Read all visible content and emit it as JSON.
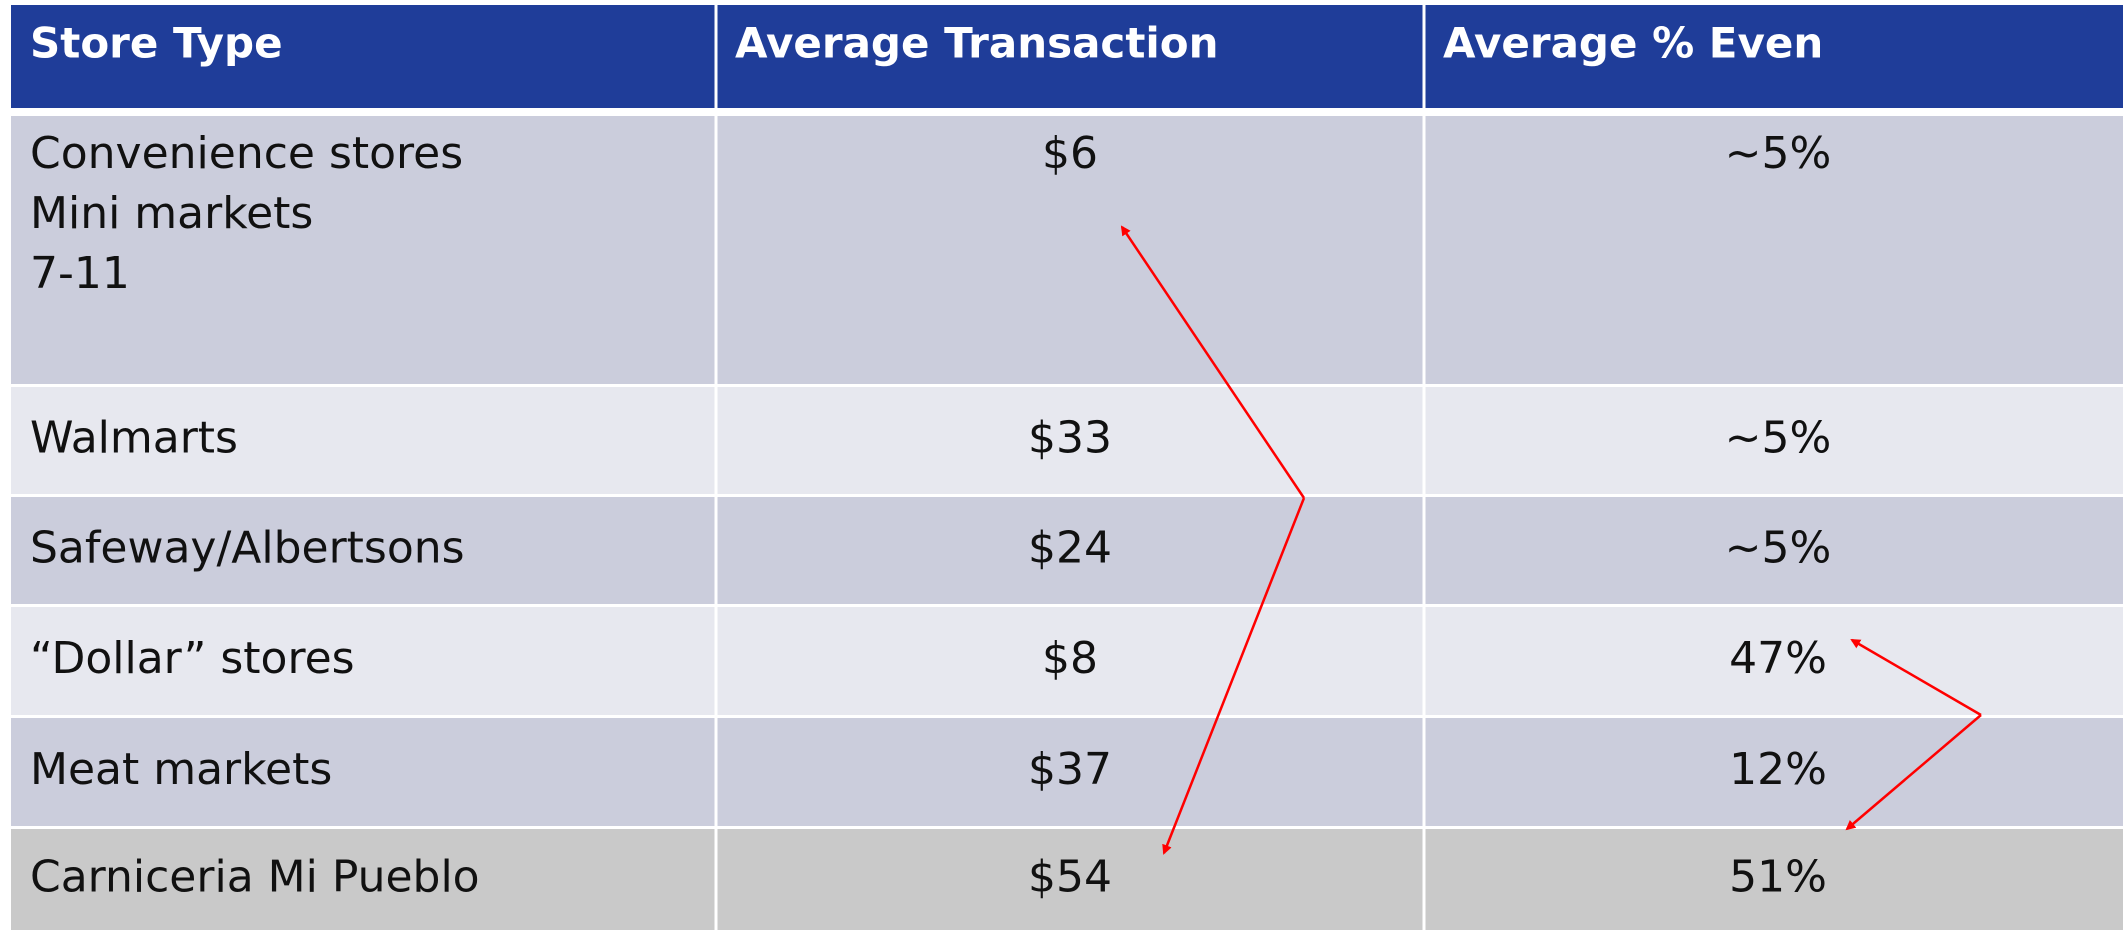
{
  "table": {
    "header": [
      "Store Type",
      "Average Transaction",
      "Average % Even"
    ],
    "rows": [
      [
        [
          "Convenience stores",
          "Mini markets",
          "7-11"
        ],
        "$6",
        "~5%"
      ],
      [
        [
          "Walmarts"
        ],
        "$33",
        "~5%"
      ],
      [
        [
          "Safeway/Albertsons"
        ],
        "$24",
        "~5%"
      ],
      [
        [
          "“Dollar” stores"
        ],
        "$8",
        "47%"
      ],
      [
        [
          "Meat markets"
        ],
        "$37",
        "12%"
      ],
      [
        [
          "Carniceria Mi Pueblo"
        ],
        "$54",
        "51%"
      ]
    ]
  }
}
